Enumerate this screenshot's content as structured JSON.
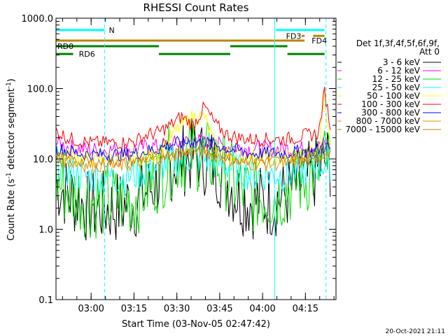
{
  "chart_data": {
    "type": "line",
    "title": "RHESSI Count Rates",
    "xlabel": "Start Time (03-Nov-05 02:47:42)",
    "ylabel_main": "Count Rate (s",
    "ylabel_sup": "-1",
    "ylabel_tail": " detector segment",
    "ylabel_close": ")",
    "yscale": "log",
    "ylim": [
      0.1,
      1000
    ],
    "xlim_minutes": [
      0,
      98
    ],
    "y_ticks": [
      {
        "value": 1000,
        "label": "1000.0"
      },
      {
        "value": 100,
        "label": "100.0"
      },
      {
        "value": 10,
        "label": "10.0"
      },
      {
        "value": 1,
        "label": "1.0"
      },
      {
        "value": 0.1,
        "label": "0.1"
      }
    ],
    "x_ticks": [
      {
        "minute": 12.3,
        "label": "03:00"
      },
      {
        "minute": 27.3,
        "label": "03:15"
      },
      {
        "minute": 42.3,
        "label": "03:30"
      },
      {
        "minute": 57.3,
        "label": "03:45"
      },
      {
        "minute": 72.3,
        "label": "04:00"
      },
      {
        "minute": 87.3,
        "label": "04:15"
      }
    ],
    "legend_header": [
      "Det 1f,3f,4f,5f,6f,9f,",
      "Att 0"
    ],
    "series": [
      {
        "name": "3 - 6 keV",
        "color": "#000000",
        "values": [
          4.5,
          3.2,
          2.5,
          2.0,
          2.0,
          2.0,
          2.2,
          2.5,
          3.5,
          5.0,
          8.0,
          10.0,
          11.0,
          10.0,
          8.0,
          5.0,
          3.0,
          2.5,
          2.5,
          2.5,
          3.0,
          4.0,
          5.0,
          6.0,
          7.0,
          9.0,
          9.0
        ]
      },
      {
        "name": "6 - 12 keV",
        "color": "#ff00ff",
        "values": [
          17,
          15,
          14,
          13.5,
          13.5,
          13.5,
          13.5,
          14,
          15,
          15,
          16,
          17,
          18,
          17,
          16,
          15,
          14.5,
          14,
          14,
          14,
          14,
          14,
          14,
          15,
          15,
          16,
          15
        ]
      },
      {
        "name": "12 - 25 keV",
        "color": "#00dd00",
        "values": [
          5,
          3.5,
          3,
          2.5,
          2.5,
          2.5,
          2.5,
          2.8,
          4,
          6,
          9,
          11,
          12,
          11,
          9,
          6,
          4,
          3,
          3,
          3,
          3.5,
          4.5,
          5.5,
          6.5,
          7,
          9,
          9
        ]
      },
      {
        "name": "25 - 50 keV",
        "color": "#00ffff",
        "values": [
          9,
          7,
          6,
          5.5,
          5.5,
          5.5,
          5.5,
          6,
          7,
          8,
          9,
          10,
          11,
          10,
          9,
          8,
          7,
          6,
          6,
          6,
          6,
          6.5,
          7,
          8,
          8,
          9,
          8
        ]
      },
      {
        "name": "50 - 100 keV",
        "color": "#ffff00",
        "values": [
          12,
          11,
          10.5,
          10,
          10,
          10,
          10,
          10.5,
          11,
          12,
          20,
          30,
          40,
          40,
          14,
          12,
          11,
          10.5,
          10.5,
          10.5,
          11,
          11,
          12,
          12,
          13,
          100,
          13
        ]
      },
      {
        "name": "100 - 300 keV",
        "color": "#ff0000",
        "values": [
          25,
          20,
          18,
          17,
          17,
          17,
          17,
          18,
          22,
          24,
          30,
          40,
          30,
          55,
          30,
          22,
          20,
          19,
          19,
          19,
          19,
          20,
          22,
          22,
          24,
          90,
          30
        ]
      },
      {
        "name": "300 - 800 keV",
        "color": "#0000ff",
        "values": [
          14,
          13,
          12,
          11.5,
          11.5,
          11.5,
          11.5,
          12,
          13,
          14,
          16,
          17,
          18,
          17,
          16,
          14,
          13,
          12,
          12,
          12,
          12,
          12.5,
          13,
          13,
          13.5,
          15,
          14
        ]
      },
      {
        "name": "800 - 7000 keV",
        "color": "#ff8c00",
        "values": [
          10,
          9,
          8.5,
          8,
          8,
          8,
          8,
          8.5,
          9,
          10,
          11,
          12,
          12.5,
          12,
          11,
          10,
          9,
          8.5,
          8.5,
          8.5,
          8.5,
          9,
          9.5,
          10,
          10.5,
          12,
          11
        ]
      },
      {
        "name": "7000 - 15000 keV",
        "color": "#b8860b",
        "values": [
          11,
          10,
          9.5,
          9,
          9,
          9,
          9,
          9.5,
          10,
          11,
          12,
          13,
          14,
          13,
          12,
          11,
          10,
          9.5,
          9.5,
          9.5,
          9.5,
          10,
          10.5,
          11,
          11.5,
          14,
          12
        ]
      }
    ],
    "series_x_minutes": [
      0,
      4,
      8,
      12,
      16,
      20,
      24,
      28,
      32,
      36,
      40,
      44,
      48,
      52,
      56,
      60,
      64,
      68,
      72,
      76,
      80,
      84,
      88,
      90,
      92,
      94,
      96
    ],
    "vlines_solid_minutes": [
      0,
      76.5
    ],
    "vlines_dashed_minutes": [
      17,
      94.5
    ],
    "flag_bars": [
      {
        "label": "N",
        "color": "#00ffff",
        "y_value": 680,
        "segments": [
          [
            0,
            17
          ],
          [
            77,
            94
          ]
        ],
        "label_minute": 18.5
      },
      {
        "label": "FD3",
        "color": "#b8860b",
        "y_value": 560,
        "segments": [
          [
            86,
            87
          ],
          [
            90,
            94
          ]
        ],
        "label_minute": 80.5
      },
      {
        "label": "FD4",
        "color": "#b8860b",
        "y_value": 480,
        "segments": [
          [
            0,
            87
          ]
        ],
        "label_minute": 89.5
      },
      {
        "label": "RD0",
        "color": "#008000",
        "y_value": 400,
        "segments": [
          [
            0,
            36
          ],
          [
            61,
            81
          ]
        ],
        "label_minute": 0.5
      },
      {
        "label": "RD6",
        "color": "#008000",
        "y_value": 310,
        "segments": [
          [
            0,
            6
          ],
          [
            36,
            61
          ],
          [
            81,
            94
          ]
        ],
        "label_minute": 8
      }
    ],
    "timestamp": "20-Oct-2021 21:11"
  }
}
